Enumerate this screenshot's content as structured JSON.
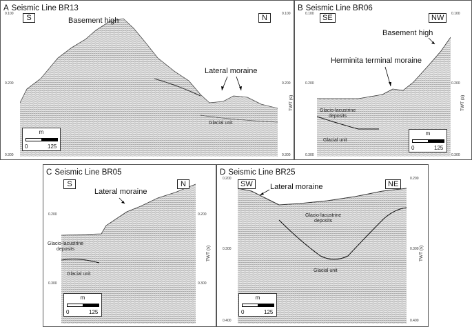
{
  "panels": {
    "A": {
      "letter": "A",
      "title": "Seismic Line BR13",
      "dir_left": "S",
      "dir_right": "N",
      "ticks_left": [
        "0.100",
        "0.200",
        "0.300"
      ],
      "ticks_right": [
        "0.100",
        "0.200",
        "0.300"
      ],
      "twt": "TWT (s)",
      "labels": {
        "basement": "Basement high",
        "lateral": "Lateral moraine",
        "glacial": "Glacial unit"
      },
      "scale": {
        "unit": "m",
        "v0": "0",
        "v1": "125"
      }
    },
    "B": {
      "letter": "B",
      "title": "Seismic Line BR06",
      "dir_left": "SE",
      "dir_right": "NW",
      "ticks_left": [
        "0.100",
        "0.200",
        "0.300"
      ],
      "ticks_right": [
        "0.100",
        "0.200",
        "0.300"
      ],
      "twt": "TWT (s)",
      "labels": {
        "basement": "Basement high",
        "herminita": "Herminita terminal moraine",
        "glacio1": "Glacio-lacustrine",
        "glacio2": "deposits",
        "glacial": "Glacial unit"
      },
      "scale": {
        "unit": "m",
        "v0": "0",
        "v1": "125"
      }
    },
    "C": {
      "letter": "C",
      "title": "Seismic Line BR05",
      "dir_left": "S",
      "dir_right": "N",
      "ticks_left": [
        "0.200",
        "0.300"
      ],
      "ticks_right": [
        "0.200",
        "0.300"
      ],
      "twt": "TWT (s)",
      "labels": {
        "lateral": "Lateral moraine",
        "glacio1": "Glacio-lacustrine",
        "glacio2": "deposits",
        "glacial": "Glacial unit"
      },
      "scale": {
        "unit": "m",
        "v0": "0",
        "v1": "125"
      }
    },
    "D": {
      "letter": "D",
      "title": "Seismic Line BR25",
      "dir_left": "SW",
      "dir_right": "NE",
      "ticks_left": [
        "0.200",
        "0.300",
        "0.400"
      ],
      "ticks_right": [
        "0.200",
        "0.300",
        "0.400"
      ],
      "twt": "TWT (s)",
      "labels": {
        "lateral": "Lateral moraine",
        "glacio1": "Glacio-lacustrine",
        "glacio2": "deposits",
        "glacial": "Glacial unit"
      },
      "scale": {
        "unit": "m",
        "v0": "0",
        "v1": "125"
      }
    }
  }
}
